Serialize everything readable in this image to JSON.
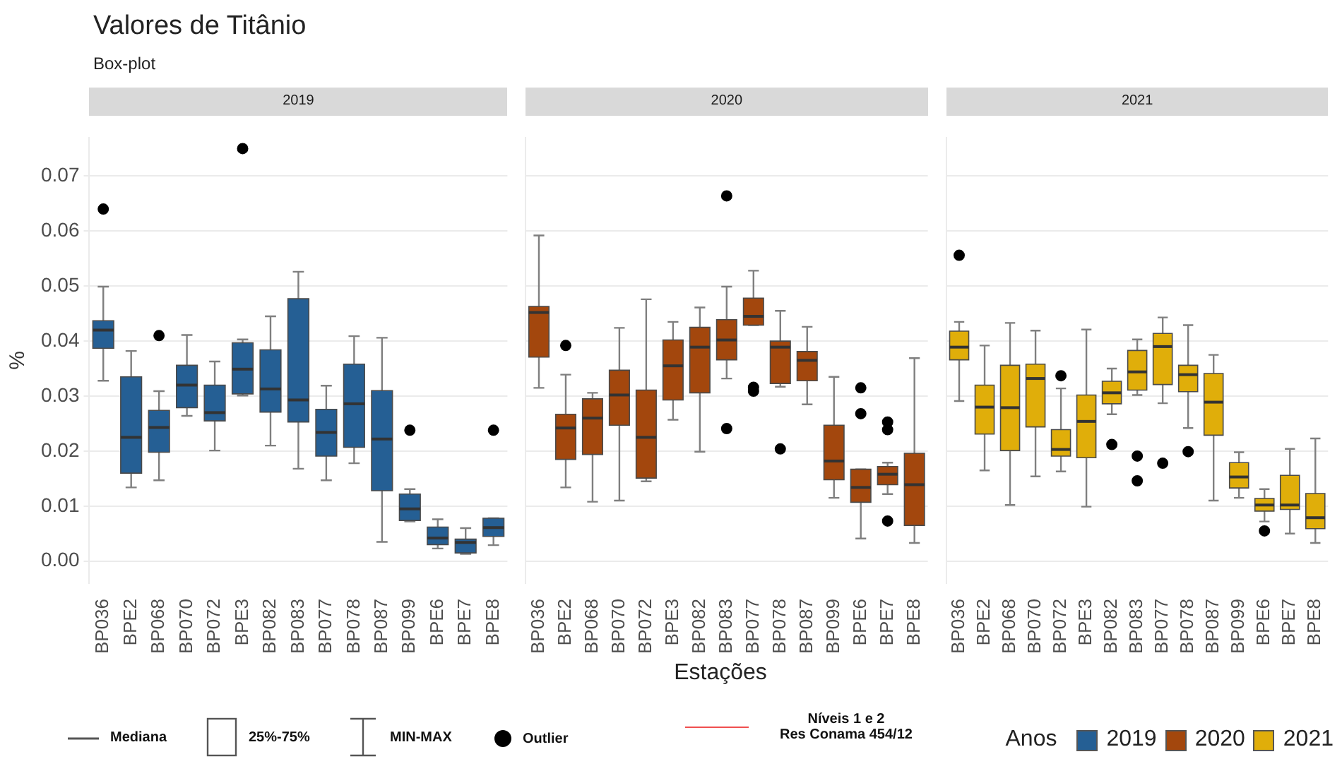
{
  "chart_data": [
    {
      "type": "box",
      "title": "Valores de Titânio",
      "subtitle": "Box-plot",
      "ylabel": "%",
      "annotations": [
        "Mediana",
        "25%-75%",
        "MIN-MAX",
        "Outlier",
        "Níveis 1 e 2\nRes Conama 454/12"
      ],
      "categories": [
        "BP036",
        "BPE2",
        "BP068",
        "BP070",
        "BP072",
        "BPE3",
        "BP082",
        "BP083",
        "BP077",
        "BP078",
        "BP087",
        "BP099",
        "BPE6",
        "BPE7",
        "BPE8"
      ],
      "ylim": [
        -0.004,
        0.077
      ],
      "yticks": [
        {
          "value": 0,
          "label": "0.00"
        },
        0.01,
        0.02,
        0.03,
        0.04,
        0.05,
        0.06,
        0.07
      ],
      "grid": "y",
      "marker": "circle",
      "series": [
        {
          "name": "2019",
          "color": "#255f94",
          "boxes": [
            {
              "low": 0.0328,
              "q1": 0.0387,
              "median": 0.042,
              "q3": 0.0437,
              "high": 0.0499,
              "outliers": [
                0.064
              ]
            },
            {
              "low": 0.0134,
              "q1": 0.016,
              "median": 0.0225,
              "q3": 0.0335,
              "high": 0.0382
            },
            {
              "low": 0.0147,
              "q1": 0.0198,
              "median": 0.0243,
              "q3": 0.0274,
              "high": 0.0309,
              "outliers": [
                0.041
              ]
            },
            {
              "low": 0.0264,
              "q1": 0.0279,
              "median": 0.032,
              "q3": 0.0356,
              "high": 0.0411
            },
            {
              "low": 0.0201,
              "q1": 0.0255,
              "median": 0.027,
              "q3": 0.032,
              "high": 0.0363
            },
            {
              "low": 0.0301,
              "q1": 0.0304,
              "median": 0.0349,
              "q3": 0.0397,
              "high": 0.0403,
              "outliers": [
                0.075
              ]
            },
            {
              "low": 0.021,
              "q1": 0.0271,
              "median": 0.0313,
              "q3": 0.0384,
              "high": 0.0445
            },
            {
              "low": 0.0168,
              "q1": 0.0253,
              "median": 0.0293,
              "q3": 0.0477,
              "high": 0.0526
            },
            {
              "low": 0.0147,
              "q1": 0.0191,
              "median": 0.0234,
              "q3": 0.0276,
              "high": 0.0319
            },
            {
              "low": 0.0178,
              "q1": 0.0207,
              "median": 0.0286,
              "q3": 0.0358,
              "high": 0.0409
            },
            {
              "low": 0.0035,
              "q1": 0.0128,
              "median": 0.0222,
              "q3": 0.031,
              "high": 0.0406
            },
            {
              "low": 0.0072,
              "q1": 0.0074,
              "median": 0.0095,
              "q3": 0.0122,
              "high": 0.0131,
              "outliers": [
                0.0238
              ]
            },
            {
              "low": 0.0023,
              "q1": 0.003,
              "median": 0.0042,
              "q3": 0.0062,
              "high": 0.0076
            },
            {
              "low": 0.0013,
              "q1": 0.0015,
              "median": 0.0034,
              "q3": 0.004,
              "high": 0.006
            },
            {
              "low": 0.0029,
              "q1": 0.0045,
              "median": 0.0061,
              "q3": 0.0078,
              "high": 0.0078,
              "outliers": [
                0.0238
              ]
            }
          ]
        }
      ]
    },
    {
      "type": "box",
      "xlabel": "Estações",
      "categories": [
        "BP036",
        "BPE2",
        "BP068",
        "BP070",
        "BP072",
        "BPE3",
        "BP082",
        "BP083",
        "BP077",
        "BP078",
        "BP087",
        "BP099",
        "BPE6",
        "BPE7",
        "BPE8"
      ],
      "ylim": [
        -0.004,
        0.077
      ],
      "yticks": [
        0,
        0.01,
        0.02,
        0.03,
        0.04,
        0.05,
        0.06,
        0.07
      ],
      "grid": "y",
      "marker": "circle",
      "tick_labels": "x",
      "series": [
        {
          "name": "2020",
          "color": "#a3470d",
          "boxes": [
            {
              "low": 0.0315,
              "q1": 0.0371,
              "median": 0.0452,
              "q3": 0.0463,
              "high": 0.0592
            },
            {
              "low": 0.0134,
              "q1": 0.0185,
              "median": 0.0242,
              "q3": 0.0267,
              "high": 0.0339,
              "outliers": [
                0.0392
              ]
            },
            {
              "low": 0.0108,
              "q1": 0.0194,
              "median": 0.026,
              "q3": 0.0295,
              "high": 0.0306
            },
            {
              "low": 0.011,
              "q1": 0.0247,
              "median": 0.0302,
              "q3": 0.0347,
              "high": 0.0424
            },
            {
              "low": 0.0145,
              "q1": 0.0151,
              "median": 0.0225,
              "q3": 0.0311,
              "high": 0.0476
            },
            {
              "low": 0.0257,
              "q1": 0.0293,
              "median": 0.0355,
              "q3": 0.0402,
              "high": 0.0435
            },
            {
              "low": 0.0199,
              "q1": 0.0306,
              "median": 0.0389,
              "q3": 0.0425,
              "high": 0.0461
            },
            {
              "low": 0.0332,
              "q1": 0.0366,
              "median": 0.0402,
              "q3": 0.0439,
              "high": 0.0499,
              "outliers": [
                0.0664,
                0.0241
              ]
            },
            {
              "low": 0.0429,
              "q1": 0.0429,
              "median": 0.0445,
              "q3": 0.0478,
              "high": 0.0528,
              "outliers": [
                0.0316,
                0.0309
              ]
            },
            {
              "low": 0.0317,
              "q1": 0.0323,
              "median": 0.0389,
              "q3": 0.04,
              "high": 0.0455,
              "outliers": [
                0.0204
              ]
            },
            {
              "low": 0.0285,
              "q1": 0.0328,
              "median": 0.0365,
              "q3": 0.0381,
              "high": 0.0426
            },
            {
              "low": 0.0115,
              "q1": 0.0148,
              "median": 0.0182,
              "q3": 0.0247,
              "high": 0.0335
            },
            {
              "low": 0.0041,
              "q1": 0.0107,
              "median": 0.0134,
              "q3": 0.0167,
              "high": 0.0167,
              "outliers": [
                0.0315,
                0.0268
              ]
            },
            {
              "low": 0.0122,
              "q1": 0.0139,
              "median": 0.0158,
              "q3": 0.0172,
              "high": 0.0179,
              "outliers": [
                0.0253,
                0.0239,
                0.0073
              ]
            },
            {
              "low": 0.0033,
              "q1": 0.0065,
              "median": 0.0139,
              "q3": 0.0196,
              "high": 0.0369
            }
          ]
        }
      ]
    },
    {
      "type": "box",
      "legend": "bottom right",
      "legend_title": "Anos",
      "categories": [
        "BP036",
        "BPE2",
        "BP068",
        "BP070",
        "BP072",
        "BPE3",
        "BP082",
        "BP083",
        "BP077",
        "BP078",
        "BP087",
        "BP099",
        "BPE6",
        "BPE7",
        "BPE8"
      ],
      "ylim": [
        -0.004,
        0.077
      ],
      "yticks": [
        0,
        0.01,
        0.02,
        0.03,
        0.04,
        0.05,
        0.06,
        0.07
      ],
      "grid": "y",
      "marker": "circle",
      "tick_labels": "x",
      "series": [
        {
          "name": "2021",
          "color": "#e0ae0a",
          "boxes": [
            {
              "low": 0.0291,
              "q1": 0.0366,
              "median": 0.0389,
              "q3": 0.0418,
              "high": 0.0435,
              "outliers": [
                0.0556
              ]
            },
            {
              "low": 0.0165,
              "q1": 0.0231,
              "median": 0.028,
              "q3": 0.032,
              "high": 0.0392
            },
            {
              "low": 0.0102,
              "q1": 0.0201,
              "median": 0.0279,
              "q3": 0.0356,
              "high": 0.0433
            },
            {
              "low": 0.0154,
              "q1": 0.0244,
              "median": 0.0332,
              "q3": 0.0358,
              "high": 0.0419
            },
            {
              "low": 0.0163,
              "q1": 0.0191,
              "median": 0.0203,
              "q3": 0.0239,
              "high": 0.0314,
              "outliers": [
                0.0337
              ]
            },
            {
              "low": 0.0099,
              "q1": 0.0188,
              "median": 0.0254,
              "q3": 0.0302,
              "high": 0.0421
            },
            {
              "low": 0.0267,
              "q1": 0.0286,
              "median": 0.0306,
              "q3": 0.0327,
              "high": 0.035,
              "outliers": [
                0.0212
              ]
            },
            {
              "low": 0.0302,
              "q1": 0.0311,
              "median": 0.0344,
              "q3": 0.0383,
              "high": 0.0403,
              "outliers": [
                0.0191,
                0.0146
              ]
            },
            {
              "low": 0.0287,
              "q1": 0.0321,
              "median": 0.039,
              "q3": 0.0414,
              "high": 0.0443,
              "outliers": [
                0.0178
              ]
            },
            {
              "low": 0.0242,
              "q1": 0.0308,
              "median": 0.0339,
              "q3": 0.0356,
              "high": 0.0429,
              "outliers": [
                0.0199
              ]
            },
            {
              "low": 0.011,
              "q1": 0.0229,
              "median": 0.0289,
              "q3": 0.0341,
              "high": 0.0375
            },
            {
              "low": 0.0115,
              "q1": 0.0133,
              "median": 0.0153,
              "q3": 0.0179,
              "high": 0.0198
            },
            {
              "low": 0.0072,
              "q1": 0.0091,
              "median": 0.0102,
              "q3": 0.0114,
              "high": 0.0131,
              "outliers": [
                0.0055
              ]
            },
            {
              "low": 0.005,
              "q1": 0.0094,
              "median": 0.0102,
              "q3": 0.0156,
              "high": 0.0204
            },
            {
              "low": 0.0033,
              "q1": 0.0059,
              "median": 0.0079,
              "q3": 0.0123,
              "high": 0.0223
            }
          ]
        }
      ]
    }
  ]
}
